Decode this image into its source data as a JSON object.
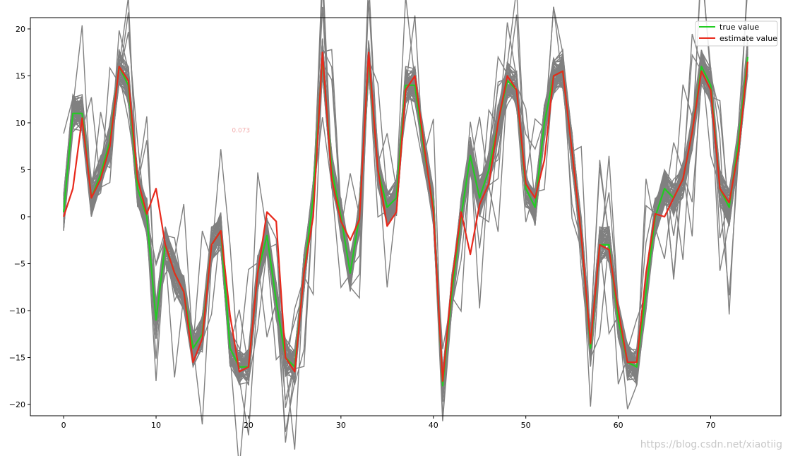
{
  "chart_data": {
    "type": "line",
    "xlim": [
      -3.6,
      77.6
    ],
    "ylim": [
      -21.2,
      21.2
    ],
    "xticks": [
      0,
      10,
      20,
      30,
      40,
      50,
      60,
      70
    ],
    "yticks": [
      -20,
      -15,
      -10,
      -5,
      0,
      5,
      10,
      15,
      20
    ],
    "grid": false,
    "legend_position": "top-right",
    "colors": {
      "true": "#22cc22",
      "estimate": "#e8291c",
      "ensemble": "#808080"
    },
    "series": [
      {
        "name": "true value",
        "values": [
          0.5,
          11,
          11,
          2,
          4.5,
          8,
          16,
          14,
          3,
          0,
          -11,
          -3,
          -6,
          -8,
          -14,
          -12.5,
          -3,
          -1.5,
          -14,
          -16,
          -16,
          -6,
          -2,
          -9,
          -15,
          -16,
          -6,
          2,
          17,
          5,
          0,
          -6,
          0,
          17,
          5,
          1,
          2,
          14,
          14,
          7,
          1,
          -18,
          -8,
          0,
          6.5,
          2,
          5,
          10,
          14.5,
          13.5,
          3,
          1,
          10,
          15,
          15.5,
          7,
          -2,
          -14,
          -3,
          -3,
          -11,
          -15.5,
          -16,
          -8,
          0,
          3,
          2,
          4,
          9,
          16,
          14,
          3,
          1,
          8,
          17
        ]
      },
      {
        "name": "estimate value",
        "values": [
          0,
          3,
          10.5,
          2,
          4,
          7.5,
          16,
          14.5,
          4,
          0.3,
          3,
          -3,
          -6,
          -8,
          -15.5,
          -13,
          -3,
          -1.5,
          -10.5,
          -16.5,
          -16,
          -6,
          0.5,
          -0.5,
          -15,
          -16.5,
          -6,
          0,
          17.5,
          4,
          -0.5,
          -2.5,
          -0.3,
          17.5,
          5,
          -1,
          0.5,
          13.5,
          15,
          7.5,
          0.5,
          -17.5,
          -7,
          0.5,
          -4,
          1.3,
          3.5,
          10,
          15,
          13.5,
          3.5,
          2,
          6,
          15,
          15.5,
          7,
          -2,
          -13.5,
          -3,
          -3.5,
          -10,
          -15.5,
          -15.5,
          -6,
          0.3,
          0,
          2,
          4,
          9,
          15.5,
          13.5,
          3,
          1.5,
          7,
          16.5
        ]
      }
    ],
    "annotation": "0.073"
  },
  "legend": {
    "true_label": "true value",
    "estimate_label": "estimate value"
  },
  "watermark": "https://blog.csdn.net/xiaotiig"
}
